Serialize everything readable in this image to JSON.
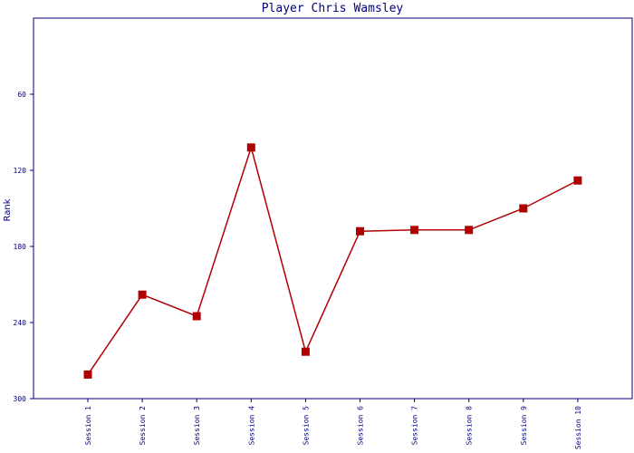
{
  "chart_data": {
    "type": "line",
    "title": "Player Chris Wamsley",
    "y_label": "Rank",
    "categories": [
      "Session 1",
      "Session 2",
      "Session 3",
      "Session 4",
      "Session 5",
      "Session 6",
      "Session 7",
      "Session 8",
      "Session 9",
      "Session 10"
    ],
    "series": [
      {
        "name": "Rank",
        "color": "#b00000",
        "values": [
          281,
          218,
          235,
          102,
          263,
          168,
          167,
          167,
          150,
          128
        ]
      }
    ],
    "ylim": [
      300,
      0
    ],
    "yticks": [
      60,
      120,
      180,
      240,
      300
    ],
    "grid": false
  }
}
